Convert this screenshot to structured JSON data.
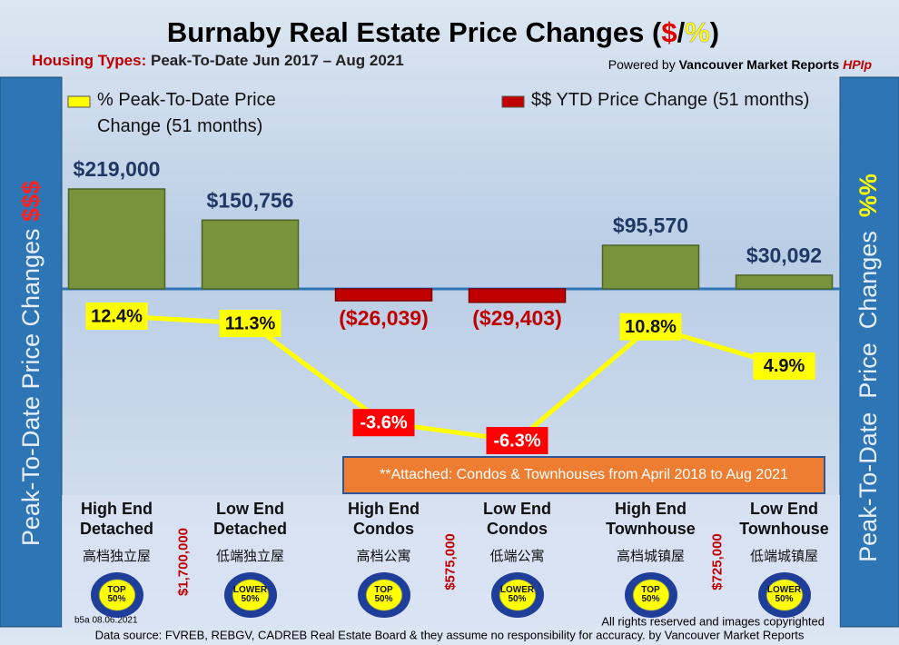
{
  "title_parts": [
    "Burnaby Real Estate Price Changes (",
    "$",
    "/",
    "%",
    ")"
  ],
  "subtitle": {
    "label": "Housing Types:",
    "text": "Peak-To-Date Jun 2017 – Aug 2021"
  },
  "powered_by": [
    "Powered by",
    "Vancouver Market Reports",
    "HPIp"
  ],
  "side_labels": {
    "left": [
      "Peak-To-Date Price Changes",
      "$$$"
    ],
    "right": [
      "Peak-To-Date  Price  Changes",
      "%%"
    ]
  },
  "note": "**Attached: Condos & Townhouses from April 2018 to Aug 2021",
  "chart_data": {
    "type": "bar",
    "categories": [
      "High End Detached",
      "Low End Detached",
      "High End Condos",
      "Low End Condos",
      "High End Townhouse",
      "Low End Townhouse"
    ],
    "chinese_labels": [
      "高档独立屋",
      "低端独立屋",
      "高档公寓",
      "低端公寓",
      "高档城镇屋",
      "低端城镇屋"
    ],
    "price_thresholds": [
      "$1,700,000",
      "$575,000",
      "$725,000"
    ],
    "badges": [
      "TOP 50%",
      "LOWER 50%",
      "TOP 50%",
      "LOWER 50%",
      "TOP 50%",
      "LOWER 50%"
    ],
    "series": [
      {
        "name": "% Peak-To-Date Price Change (51 months)",
        "type": "line",
        "axis": "y2",
        "color": "#ffff00",
        "values": [
          12.4,
          11.3,
          -3.6,
          -6.3,
          10.8,
          4.9
        ],
        "value_labels": [
          "12.4%",
          "11.3%",
          "-3.6%",
          "-6.3%",
          "10.8%",
          "4.9%"
        ]
      },
      {
        "name": "$$ YTD Price Change (51 months)",
        "type": "bar",
        "color": "#77933c",
        "negative_color": "#c00000",
        "values": [
          219000,
          150756,
          -26039,
          -29403,
          95570,
          30092
        ],
        "value_labels": [
          "$219,000",
          "$150,756",
          "($26,039)",
          "($29,403)",
          "$95,570",
          "$30,092"
        ]
      }
    ]
  },
  "footer": {
    "code": "b5a 08.06.2021",
    "rights": "All rights reserved and  images copyrighted",
    "source": "Data source: FVREB, REBGV, CADREB Real Estate Board & they assume no responsibility for accuracy. by Vancouver Market Reports"
  }
}
